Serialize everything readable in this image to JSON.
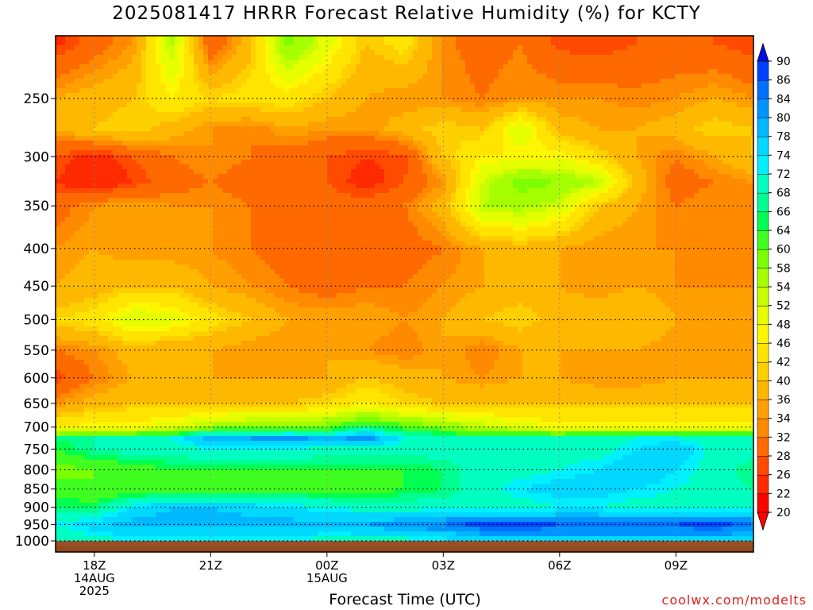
{
  "chart_data": {
    "type": "heatmap",
    "title": "2025081417 HRRR Forecast Relative Humidity (%) for KCTY",
    "xlabel": "Forecast Time (UTC)",
    "ylabel": "",
    "credit": "coolwx.com/modelts",
    "x_ticks": [
      {
        "hour": 18,
        "lines": [
          "18Z",
          "14AUG",
          "2025"
        ]
      },
      {
        "hour": 21,
        "lines": [
          "21Z"
        ]
      },
      {
        "hour": 24,
        "lines": [
          "00Z",
          "15AUG"
        ]
      },
      {
        "hour": 27,
        "lines": [
          "03Z"
        ]
      },
      {
        "hour": 30,
        "lines": [
          "06Z"
        ]
      },
      {
        "hour": 33,
        "lines": [
          "09Z"
        ]
      }
    ],
    "xlim": [
      17,
      35
    ],
    "y_ticks": [
      250,
      300,
      350,
      400,
      450,
      500,
      550,
      600,
      650,
      700,
      750,
      800,
      850,
      900,
      950,
      1000
    ],
    "ylim_hpa": [
      200,
      1013
    ],
    "y_scale": "log",
    "colorbar": {
      "levels": [
        20,
        22,
        26,
        28,
        32,
        34,
        36,
        40,
        42,
        46,
        48,
        52,
        54,
        58,
        60,
        64,
        66,
        68,
        72,
        74,
        78,
        80,
        84,
        86,
        90
      ],
      "colors": [
        "#ff0000",
        "#ff2a00",
        "#ff4a00",
        "#ff6a00",
        "#ff8a00",
        "#ffa000",
        "#ffb800",
        "#ffd000",
        "#ffe400",
        "#fff700",
        "#e6ff00",
        "#c8ff00",
        "#a6ff00",
        "#7cff00",
        "#40ff20",
        "#00ff50",
        "#00ff90",
        "#00ffc0",
        "#00f0ff",
        "#00d8ff",
        "#00b8ff",
        "#0094ff",
        "#0070ff",
        "#0040ff",
        "#0010e0"
      ]
    },
    "hours": [
      17,
      18,
      19,
      20,
      21,
      22,
      23,
      24,
      25,
      26,
      27,
      28,
      29,
      30,
      31,
      32,
      33,
      34,
      35
    ],
    "levels_hpa": [
      210,
      250,
      275,
      300,
      325,
      350,
      400,
      450,
      500,
      550,
      600,
      650,
      700,
      725,
      750,
      800,
      850,
      900,
      950,
      1000
    ],
    "rh": [
      [
        25,
        30,
        34,
        55,
        28,
        38,
        60,
        50,
        40,
        44,
        33,
        30,
        32,
        27,
        26,
        28,
        29,
        28,
        26
      ],
      [
        36,
        38,
        40,
        46,
        42,
        44,
        44,
        40,
        36,
        34,
        34,
        32,
        34,
        34,
        34,
        33,
        34,
        36,
        34
      ],
      [
        36,
        40,
        42,
        38,
        34,
        32,
        36,
        34,
        34,
        38,
        42,
        40,
        52,
        38,
        36,
        36,
        38,
        42,
        40
      ],
      [
        28,
        24,
        28,
        32,
        34,
        32,
        30,
        28,
        26,
        27,
        40,
        46,
        46,
        48,
        42,
        36,
        32,
        36,
        40
      ],
      [
        26,
        22,
        26,
        30,
        32,
        30,
        30,
        28,
        24,
        28,
        34,
        52,
        60,
        58,
        54,
        38,
        30,
        32,
        34
      ],
      [
        30,
        34,
        36,
        34,
        34,
        32,
        30,
        30,
        30,
        32,
        38,
        54,
        56,
        52,
        40,
        36,
        32,
        34,
        32
      ],
      [
        34,
        36,
        34,
        34,
        34,
        32,
        30,
        28,
        28,
        30,
        32,
        36,
        38,
        36,
        34,
        34,
        34,
        32,
        32
      ],
      [
        36,
        38,
        40,
        40,
        36,
        34,
        32,
        30,
        32,
        32,
        34,
        36,
        38,
        36,
        34,
        36,
        34,
        34,
        34
      ],
      [
        42,
        44,
        52,
        50,
        44,
        40,
        36,
        36,
        36,
        34,
        36,
        40,
        42,
        38,
        40,
        40,
        36,
        36,
        34
      ],
      [
        32,
        34,
        38,
        36,
        36,
        34,
        34,
        36,
        34,
        32,
        36,
        32,
        36,
        36,
        36,
        36,
        34,
        34,
        34
      ],
      [
        26,
        32,
        36,
        38,
        36,
        36,
        36,
        36,
        40,
        38,
        36,
        34,
        36,
        36,
        34,
        34,
        36,
        36,
        36
      ],
      [
        34,
        38,
        40,
        40,
        40,
        40,
        40,
        42,
        46,
        42,
        40,
        40,
        40,
        40,
        40,
        40,
        40,
        40,
        40
      ],
      [
        46,
        48,
        48,
        50,
        56,
        58,
        58,
        60,
        66,
        62,
        58,
        54,
        50,
        48,
        48,
        48,
        48,
        48,
        48
      ],
      [
        66,
        68,
        68,
        72,
        80,
        80,
        82,
        78,
        82,
        72,
        70,
        68,
        68,
        68,
        70,
        72,
        72,
        70,
        70
      ],
      [
        64,
        68,
        70,
        70,
        72,
        72,
        72,
        70,
        70,
        70,
        70,
        70,
        70,
        70,
        70,
        74,
        78,
        70,
        70
      ],
      [
        58,
        60,
        62,
        64,
        64,
        64,
        64,
        64,
        64,
        64,
        66,
        70,
        70,
        72,
        74,
        78,
        74,
        70,
        66
      ],
      [
        62,
        60,
        60,
        62,
        62,
        62,
        62,
        62,
        62,
        64,
        66,
        70,
        74,
        76,
        76,
        74,
        72,
        70,
        68
      ],
      [
        66,
        66,
        74,
        78,
        78,
        76,
        74,
        72,
        70,
        70,
        70,
        70,
        70,
        72,
        72,
        70,
        70,
        70,
        70
      ],
      [
        72,
        76,
        80,
        80,
        80,
        80,
        80,
        78,
        80,
        82,
        84,
        88,
        88,
        86,
        86,
        86,
        86,
        88,
        84
      ],
      [
        68,
        70,
        72,
        72,
        72,
        72,
        72,
        70,
        70,
        70,
        72,
        74,
        76,
        76,
        76,
        76,
        76,
        76,
        74
      ]
    ],
    "ground_color": "#a0522d"
  }
}
